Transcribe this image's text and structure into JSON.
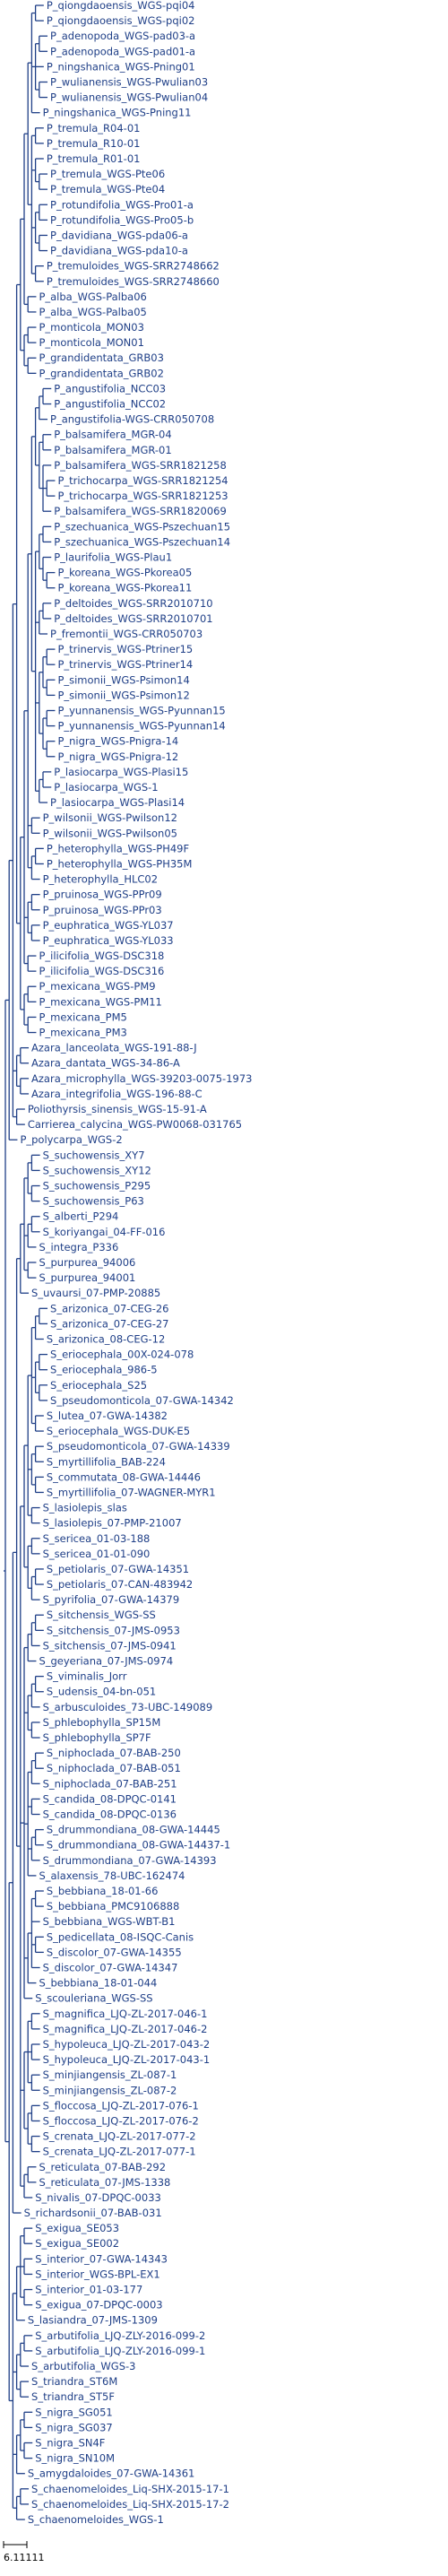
{
  "scale_label": "6.11111",
  "tree": [
    [
      [
        [
          [
            [
              [
                [
                  [
                    "P_qiongdaoensis_WGS-pqi04",
                    "P_qiongdaoensis_WGS-pqi02"
                  ],
                  [
                    [
                      "P_adenopoda_WGS-pad03-a",
                      "P_adenopoda_WGS-pad01-a"
                    ],
                    "P_ningshanica_WGS-Pning01",
                    [
                      "P_wulianensis_WGS-Pwulian03",
                      "P_wulianensis_WGS-Pwulian04"
                    ]
                  ],
                  "P_ningshanica_WGS-Pning11"
                ],
                [
                  [
                    "P_tremula_R04-01",
                    "P_tremula_R10-01"
                  ],
                  [
                    "P_tremula_R01-01",
                    [
                      "P_tremula_WGS-Pte06",
                      "P_tremula_WGS-Pte04"
                    ]
                  ],
                  [
                    [
                      "P_rotundifolia_WGS-Pro01-a",
                      "P_rotundifolia_WGS-Pro05-b"
                    ],
                    [
                      "P_davidiana_WGS-pda06-a",
                      "P_davidiana_WGS-pda10-a"
                    ]
                  ],
                  [
                    "P_tremuloides_WGS-SRR2748662",
                    "P_tremuloides_WGS-SRR2748660"
                  ]
                ]
              ],
              [
                "P_alba_WGS-Palba06",
                "P_alba_WGS-Palba05"
              ]
            ],
            [
              [
                "P_monticola_MON03",
                "P_monticola_MON01"
              ],
              [
                "P_grandidentata_GRB03",
                "P_grandidentata_GRB02"
              ]
            ]
          ],
          [
            [
              [
                [
                  [
                    [
                      [
                        "P_angustifolia_NCC03",
                        "P_angustifolia_NCC02"
                      ],
                      "P_angustifolia-WGS-CRR050708"
                    ],
                    [
                      [
                        "P_balsamifera_MGR-04",
                        "P_balsamifera_MGR-01"
                      ],
                      [
                        "P_balsamifera_WGS-SRR1821258",
                        [
                          "P_trichocarpa_WGS-SRR1821254",
                          "P_trichocarpa_WGS-SRR1821253"
                        ],
                        "P_balsamifera_WGS-SRR1820069"
                      ]
                    ]
                  ],
                  [
                    [
                      [
                        "P_szechuanica_WGS-Pszechuan15",
                        "P_szechuanica_WGS-Pszechuan14"
                      ],
                      [
                        "P_laurifolia_WGS-Plau1",
                        [
                          "P_koreana_WGS-Pkorea05",
                          "P_koreana_WGS-Pkorea11"
                        ]
                      ]
                    ],
                    [
                      [
                        "P_deltoides_WGS-SRR2010710",
                        "P_deltoides_WGS-SRR2010701"
                      ],
                      "P_fremontii_WGS-CRR050703"
                    ],
                    [
                      [
                        [
                          "P_trinervis_WGS-Ptriner15",
                          "P_trinervis_WGS-Ptriner14"
                        ],
                        [
                          "P_simonii_WGS-Psimon14",
                          "P_simonii_WGS-Psimon12"
                        ]
                      ],
                      [
                        [
                          "P_yunnanensis_WGS-Pyunnan15",
                          "P_yunnanensis_WGS-Pyunnan14"
                        ],
                        [
                          "P_nigra_WGS-Pnigra-14",
                          "P_nigra_WGS-Pnigra-12"
                        ]
                      ]
                    ],
                    [
                      [
                        "P_lasiocarpa_WGS-Plasi15",
                        "P_lasiocarpa_WGS-1"
                      ],
                      "P_lasiocarpa_WGS-Plasi14"
                    ]
                  ]
                ],
                [
                  "P_wilsonii_WGS-Pwilson12",
                  "P_wilsonii_WGS-Pwilson05"
                ],
                [
                  [
                    "P_heterophylla_WGS-PH49F",
                    "P_heterophylla_WGS-PH35M"
                  ],
                  "P_heterophylla_HLC02"
                ]
              ],
              [
                [
                  "P_pruinosa_WGS-PPr09",
                  "P_pruinosa_WGS-PPr03"
                ],
                [
                  "P_euphratica_WGS-YL037",
                  "P_euphratica_WGS-YL033"
                ]
              ],
              [
                "P_ilicifolia_WGS-DSC318",
                "P_ilicifolia_WGS-DSC316"
              ]
            ],
            [
              [
                "P_mexicana_WGS-PM9",
                "P_mexicana_WGS-PM11"
              ],
              [
                "P_mexicana_PM5",
                "P_mexicana_PM3"
              ]
            ]
          ]
        ],
        [
          [
            "Azara_lanceolata_WGS-191-88-J",
            "Azara_dantata_WGS-34-86-A"
          ],
          [
            "Azara_microphylla_WGS-39203-0075-1973",
            "Azara_integrifolia_WGS-196-88-C"
          ]
        ],
        [
          "Poliothyrsis_sinensis_WGS-15-91-A",
          "Carrierea_calycina_WGS-PW0068-031765"
        ]
      ],
      "P_polycarpa_WGS-2"
    ],
    [
      [
        [
          [
            [
              [
                [
                  "S_suchowensis_XY7",
                  "S_suchowensis_XY12"
                ],
                [
                  "S_suchowensis_P295",
                  "S_suchowensis_P63"
                ]
              ],
              [
                [
                  "S_alberti_P294",
                  "S_koriyangai_04-FF-016"
                ],
                "S_integra_P336"
              ],
              [
                "S_purpurea_94006",
                "S_purpurea_94001"
              ]
            ],
            "S_uvaursi_07-PMP-20885"
          ],
          [
            [
              [
                [
                  [
                    [
                      "S_arizonica_07-CEG-26",
                      "S_arizonica_07-CEG-27"
                    ],
                    "S_arizonica_08-CEG-12"
                  ],
                  [
                    [
                      "S_eriocephala_00X-024-078",
                      "S_eriocephala_986-5"
                    ],
                    [
                      "S_eriocephala_S25",
                      "S_pseudomonticola_07-GWA-14342"
                    ]
                  ],
                  [
                    "S_lutea_07-GWA-14382",
                    "S_eriocephala_WGS-DUK-E5"
                  ]
                ],
                [
                  [
                    "S_pseudomonticola_07-GWA-14339",
                    "S_myrtillifolia_BAB-224"
                  ],
                  [
                    "S_commutata_08-GWA-14446",
                    "S_myrtillifolia_07-WAGNER-MYR1"
                  ]
                ],
                [
                  "S_lasiolepis_slas",
                  "S_lasiolepis_07-PMP-21007"
                ]
              ],
              [
                [
                  "S_sericea_01-03-188",
                  "S_sericea_01-01-090"
                ],
                [
                  [
                    "S_petiolaris_07-GWA-14351",
                    "S_petiolaris_07-CAN-483942"
                  ],
                  "S_pyrifolia_07-GWA-14379"
                ]
              ]
            ],
            [
              [
                [
                  [
                    "S_sitchensis_WGS-SS",
                    "S_sitchensis_07-JMS-0953"
                  ],
                  "S_sitchensis_07-JMS-0941"
                ],
                "S_geyeriana_07-JMS-0974"
              ],
              [
                [
                  [
                    "S_viminalis_Jorr",
                    "S_udensis_04-bn-051"
                  ],
                  "S_arbusculoides_73-UBC-149089"
                ],
                [
                  "S_phlebophylla_SP15M",
                  "S_phlebophylla_SP7F"
                ]
              ],
              [
                [
                  [
                    "S_niphoclada_07-BAB-250",
                    "S_niphoclada_07-BAB-051"
                  ],
                  "S_niphoclada_07-BAB-251"
                ],
                [
                  "S_candida_08-DPQC-0141",
                  "S_candida_08-DPQC-0136"
                ],
                [
                  [
                    "S_drummondiana_08-GWA-14445",
                    "S_drummondiana_08-GWA-14437-1"
                  ],
                  "S_drummondiana_07-GWA-14393"
                ],
                "S_alaxensis_78-UBC-162474"
              ],
              [
                [
                  [
                    "S_bebbiana_18-01-66",
                    "S_bebbiana_PMC9106888"
                  ],
                  "S_bebbiana_WGS-WBT-B1",
                  [
                    "S_pedicellata_08-ISQC-Canis",
                    "S_discolor_07-GWA-14355"
                  ],
                  "S_discolor_07-GWA-14347"
                ],
                "S_bebbiana_18-01-044"
              ],
              "S_scouleriana_WGS-SS"
            ],
            [
              [
                [
                  "S_magnifica_LJQ-ZL-2017-046-1",
                  "S_magnifica_LJQ-ZL-2017-046-2"
                ],
                [
                  "S_hypoleuca_LJQ-ZL-2017-043-2",
                  "S_hypoleuca_LJQ-ZL-2017-043-1"
                ],
                [
                  "S_minjiangensis_ZL-087-1",
                  "S_minjiangensis_ZL-087-2"
                ]
              ],
              [
                [
                  "S_floccosa_LJQ-ZL-2017-076-1",
                  "S_floccosa_LJQ-ZL-2017-076-2"
                ],
                [
                  "S_crenata_LJQ-ZL-2017-077-2",
                  "S_crenata_LJQ-ZL-2017-077-1"
                ]
              ]
            ],
            [
              [
                "S_reticulata_07-BAB-292",
                "S_reticulata_07-JMS-1338"
              ],
              "S_nivalis_07-DPQC-0033"
            ]
          ]
        ],
        "S_richardsonii_07-BAB-031"
      ],
      [
        [
          [
            [
              "S_exigua_SE053",
              "S_exigua_SE002"
            ],
            [
              "S_interior_07-GWA-14343",
              "S_interior_WGS-BPL-EX1"
            ],
            [
              "S_interior_01-03-177",
              "S_exigua_07-DPQC-0003"
            ]
          ],
          "S_lasiandra_07-JMS-1309"
        ],
        [
          [
            [
              "S_arbutifolia_LJQ-ZLY-2016-099-2",
              "S_arbutifolia_LJQ-ZLY-2016-099-1"
            ],
            "S_arbutifolia_WGS-3"
          ],
          [
            "S_triandra_ST6M",
            "S_triandra_ST5F"
          ]
        ],
        [
          [
            [
              "S_nigra_SG051",
              "S_nigra_SG037"
            ],
            [
              "S_nigra_SN4F",
              "S_nigra_SN10M"
            ]
          ],
          "S_amygdaloides_07-GWA-14361"
        ],
        [
          [
            "S_chaenomeloides_Liq-SHX-2015-17-1",
            "S_chaenomeloides_Liq-SHX-2015-17-2"
          ],
          "S_chaenomeloides_WGS-1"
        ]
      ]
    ]
  ]
}
